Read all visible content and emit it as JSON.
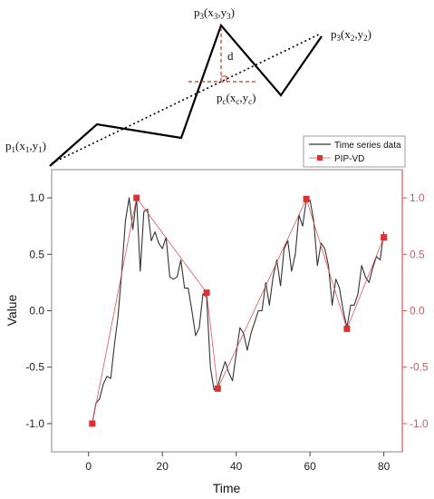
{
  "diagram": {
    "labels": {
      "p1": {
        "p": "p",
        "sub1": "1",
        "open": "(x",
        "sub2": "1",
        "comma": ",y",
        "sub3": "1",
        "close": ")"
      },
      "p3top": {
        "p": "p",
        "sub1": "3",
        "open": "(x",
        "sub2": "3",
        "comma": ",y",
        "sub3": "3",
        "close": ")"
      },
      "p3right": {
        "p": "p",
        "sub1": "3",
        "open": "(x",
        "sub2": "2",
        "comma": ",y",
        "sub3": "2",
        "close": ")"
      },
      "pc": {
        "p": "p",
        "sub1": "c",
        "open": "(x",
        "sub2": "c",
        "comma": ",y",
        "sub3": "c",
        "close": ")"
      },
      "d": "d"
    },
    "colors": {
      "polyline": "#000000",
      "dotted": "#000000",
      "dashed": "#c0392b"
    }
  },
  "chart_data": {
    "type": "line",
    "xlabel": "Time",
    "ylabel": "Value",
    "xlim": [
      -10,
      85
    ],
    "ylim": [
      -1.25,
      1.25
    ],
    "x_ticks": [
      "0",
      "20",
      "40",
      "60",
      "80"
    ],
    "x_tick_values": [
      0,
      20,
      40,
      60,
      80
    ],
    "y_ticks_left": [
      "-1.0",
      "-0.5",
      "0.0",
      "0.5",
      "1.0"
    ],
    "y_ticks_right": [
      "-1.0",
      "-0.5",
      "0.0",
      "0.5",
      "1.0"
    ],
    "y_tick_values": [
      -1.0,
      -0.5,
      0.0,
      0.5,
      1.0
    ],
    "legend_position": "top-right",
    "series": [
      {
        "name": "Time series data",
        "color": "#333333",
        "style": "line",
        "x": [
          1,
          2,
          3,
          4,
          5,
          6,
          7,
          8,
          9,
          10,
          11,
          12,
          13,
          14,
          15,
          16,
          17,
          18,
          19,
          20,
          21,
          22,
          23,
          24,
          25,
          26,
          27,
          28,
          29,
          30,
          31,
          32,
          33,
          34,
          35,
          36,
          37,
          38,
          39,
          40,
          41,
          42,
          43,
          44,
          45,
          46,
          47,
          48,
          49,
          50,
          51,
          52,
          53,
          54,
          55,
          56,
          57,
          58,
          59,
          60,
          61,
          62,
          63,
          64,
          65,
          66,
          67,
          68,
          69,
          70,
          71,
          72,
          73,
          74,
          75,
          76,
          77,
          78,
          79,
          80
        ],
        "y": [
          -1.0,
          -0.82,
          -0.78,
          -0.65,
          -0.58,
          -0.6,
          -0.3,
          -0.05,
          0.35,
          0.8,
          1.0,
          0.72,
          1.0,
          0.35,
          0.88,
          0.9,
          0.62,
          0.7,
          0.6,
          0.55,
          0.65,
          0.3,
          0.28,
          0.3,
          0.45,
          0.2,
          0.2,
          0.0,
          -0.22,
          -0.15,
          0.15,
          0.12,
          -0.5,
          -0.7,
          -0.67,
          -0.55,
          -0.45,
          -0.55,
          -0.62,
          -0.38,
          -0.15,
          -0.2,
          -0.35,
          -0.2,
          -0.1,
          0.0,
          0.0,
          0.25,
          0.05,
          0.3,
          0.45,
          0.22,
          0.55,
          0.62,
          0.35,
          0.5,
          0.85,
          0.75,
          0.98,
          0.98,
          0.8,
          0.4,
          0.6,
          0.55,
          0.4,
          0.05,
          0.28,
          0.2,
          0.0,
          -0.15,
          0.05,
          0.05,
          0.15,
          0.4,
          0.3,
          0.25,
          0.38,
          0.48,
          0.45,
          0.7
        ]
      },
      {
        "name": "PIP-VD",
        "color": "#e05555",
        "style": "line-with-markers",
        "x": [
          1,
          13,
          32,
          35,
          59,
          70,
          80
        ],
        "y": [
          -1.0,
          1.0,
          0.16,
          -0.69,
          0.99,
          -0.16,
          0.65
        ]
      }
    ]
  }
}
